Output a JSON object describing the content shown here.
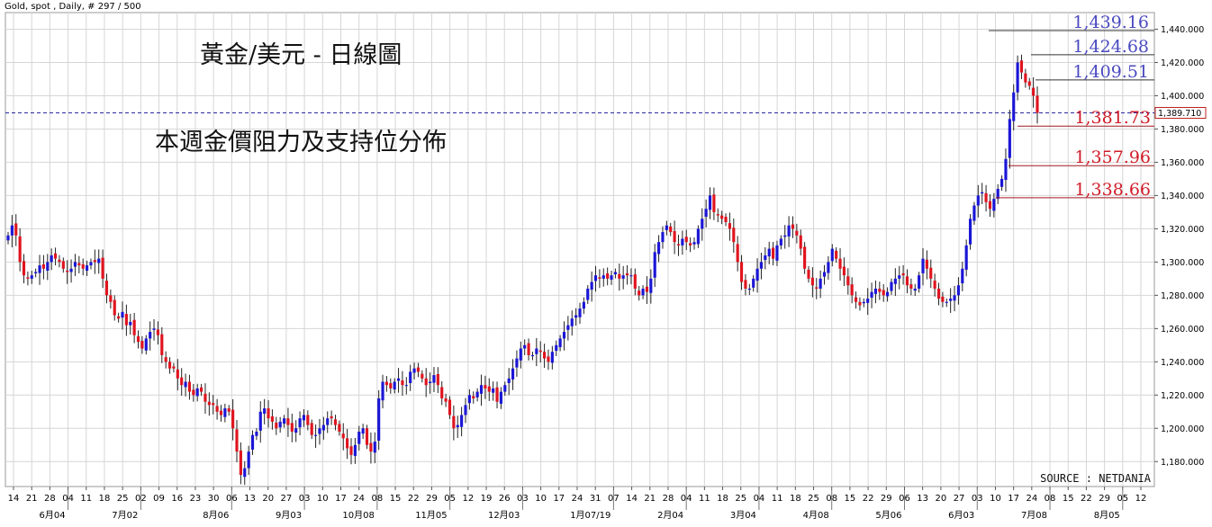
{
  "header": {
    "caption": "Gold, spot , Daily, # 297 / 500"
  },
  "title": "黃金/美元 - 日線圖",
  "subtitle": "本週金價阻力及支持位分佈",
  "source": "SOURCE : NETDANIA",
  "colors": {
    "up": "#1a16d6",
    "down": "#e0141e",
    "resistance": "#4a4ac0",
    "support": "#d01c28",
    "grid": "#d6d6d6",
    "current": "#2a2aa0"
  },
  "chart_data": {
    "type": "candlestick",
    "ylim": [
      1165,
      1450
    ],
    "yticks": [
      "1,180.000",
      "1,200.000",
      "1,220.000",
      "1,240.000",
      "1,260.000",
      "1,280.000",
      "1,300.000",
      "1,320.000",
      "1,340.000",
      "1,360.000",
      "1,380.000",
      "1,400.000",
      "1,420.000",
      "1,440.000"
    ],
    "ytick_values": [
      1180,
      1200,
      1220,
      1240,
      1260,
      1280,
      1300,
      1320,
      1340,
      1360,
      1380,
      1400,
      1420,
      1440
    ],
    "xticks_days": [
      "14",
      "21",
      "28",
      "04",
      "11",
      "18",
      "25",
      "02",
      "09",
      "16",
      "23",
      "30",
      "06",
      "13",
      "20",
      "27",
      "03",
      "10",
      "17",
      "24",
      "08",
      "15",
      "22",
      "29",
      "05",
      "12",
      "19",
      "26",
      "03",
      "10",
      "17",
      "24",
      "31",
      "07",
      "14",
      "21",
      "28",
      "04",
      "11",
      "18",
      "25",
      "04",
      "11",
      "18",
      "25",
      "08",
      "15",
      "22",
      "29",
      "06",
      "13",
      "20",
      "27",
      "03",
      "10",
      "17",
      "24",
      "08",
      "15",
      "22",
      "29",
      "05",
      "12"
    ],
    "xticks_months": [
      "6月04",
      "7月02",
      "8月06",
      "9月03",
      "10月08",
      "11月05",
      "12月03",
      "1月07/19",
      "2月04",
      "3月04",
      "4月08",
      "5月06",
      "6月03",
      "7月08",
      "8月05"
    ],
    "current_price": {
      "value": 1389.71,
      "label": "1,389.710"
    },
    "resistance_levels": [
      {
        "value": 1439.16,
        "label": "1,439.16"
      },
      {
        "value": 1424.68,
        "label": "1,424.68"
      },
      {
        "value": 1409.51,
        "label": "1,409.51"
      }
    ],
    "support_levels": [
      {
        "value": 1381.73,
        "label": "1,381.73"
      },
      {
        "value": 1357.96,
        "label": "1,357.96"
      },
      {
        "value": 1338.66,
        "label": "1,338.66"
      }
    ],
    "close_series": [
      1316,
      1322,
      1316,
      1300,
      1292,
      1290,
      1292,
      1294,
      1298,
      1296,
      1300,
      1304,
      1302,
      1300,
      1296,
      1294,
      1296,
      1300,
      1298,
      1296,
      1298,
      1300,
      1300,
      1302,
      1290,
      1280,
      1276,
      1268,
      1266,
      1270,
      1262,
      1264,
      1256,
      1252,
      1248,
      1254,
      1258,
      1260,
      1256,
      1244,
      1240,
      1236,
      1236,
      1230,
      1226,
      1228,
      1222,
      1220,
      1224,
      1222,
      1216,
      1214,
      1214,
      1210,
      1208,
      1212,
      1210,
      1200,
      1186,
      1172,
      1176,
      1186,
      1196,
      1198,
      1210,
      1212,
      1206,
      1204,
      1200,
      1204,
      1206,
      1202,
      1198,
      1200,
      1206,
      1208,
      1202,
      1196,
      1196,
      1200,
      1202,
      1206,
      1206,
      1202,
      1198,
      1194,
      1188,
      1184,
      1190,
      1198,
      1200,
      1190,
      1186,
      1192,
      1218,
      1228,
      1226,
      1224,
      1228,
      1230,
      1226,
      1226,
      1234,
      1236,
      1234,
      1230,
      1226,
      1228,
      1232,
      1226,
      1218,
      1216,
      1208,
      1200,
      1202,
      1208,
      1214,
      1220,
      1218,
      1222,
      1226,
      1224,
      1222,
      1224,
      1216,
      1222,
      1226,
      1230,
      1236,
      1242,
      1248,
      1250,
      1244,
      1244,
      1248,
      1246,
      1242,
      1240,
      1246,
      1250,
      1254,
      1258,
      1262,
      1266,
      1268,
      1272,
      1276,
      1284,
      1288,
      1292,
      1290,
      1292,
      1290,
      1292,
      1294,
      1290,
      1292,
      1292,
      1292,
      1284,
      1280,
      1284,
      1282,
      1290,
      1306,
      1312,
      1318,
      1322,
      1318,
      1312,
      1310,
      1314,
      1312,
      1310,
      1312,
      1320,
      1326,
      1332,
      1340,
      1330,
      1328,
      1326,
      1324,
      1320,
      1312,
      1300,
      1288,
      1284,
      1284,
      1290,
      1296,
      1300,
      1304,
      1308,
      1302,
      1310,
      1314,
      1316,
      1322,
      1320,
      1316,
      1308,
      1296,
      1290,
      1286,
      1284,
      1290,
      1294,
      1300,
      1308,
      1302,
      1296,
      1292,
      1286,
      1280,
      1276,
      1274,
      1276,
      1278,
      1282,
      1284,
      1282,
      1280,
      1282,
      1288,
      1290,
      1292,
      1292,
      1286,
      1284,
      1284,
      1292,
      1302,
      1296,
      1290,
      1284,
      1278,
      1276,
      1276,
      1278,
      1280,
      1286,
      1296,
      1310,
      1326,
      1334,
      1340,
      1342,
      1336,
      1332,
      1338,
      1344,
      1350,
      1362,
      1386,
      1402,
      1420,
      1414,
      1408,
      1406,
      1400,
      1389.7
    ],
    "ohlc_scaling_note": ""
  }
}
